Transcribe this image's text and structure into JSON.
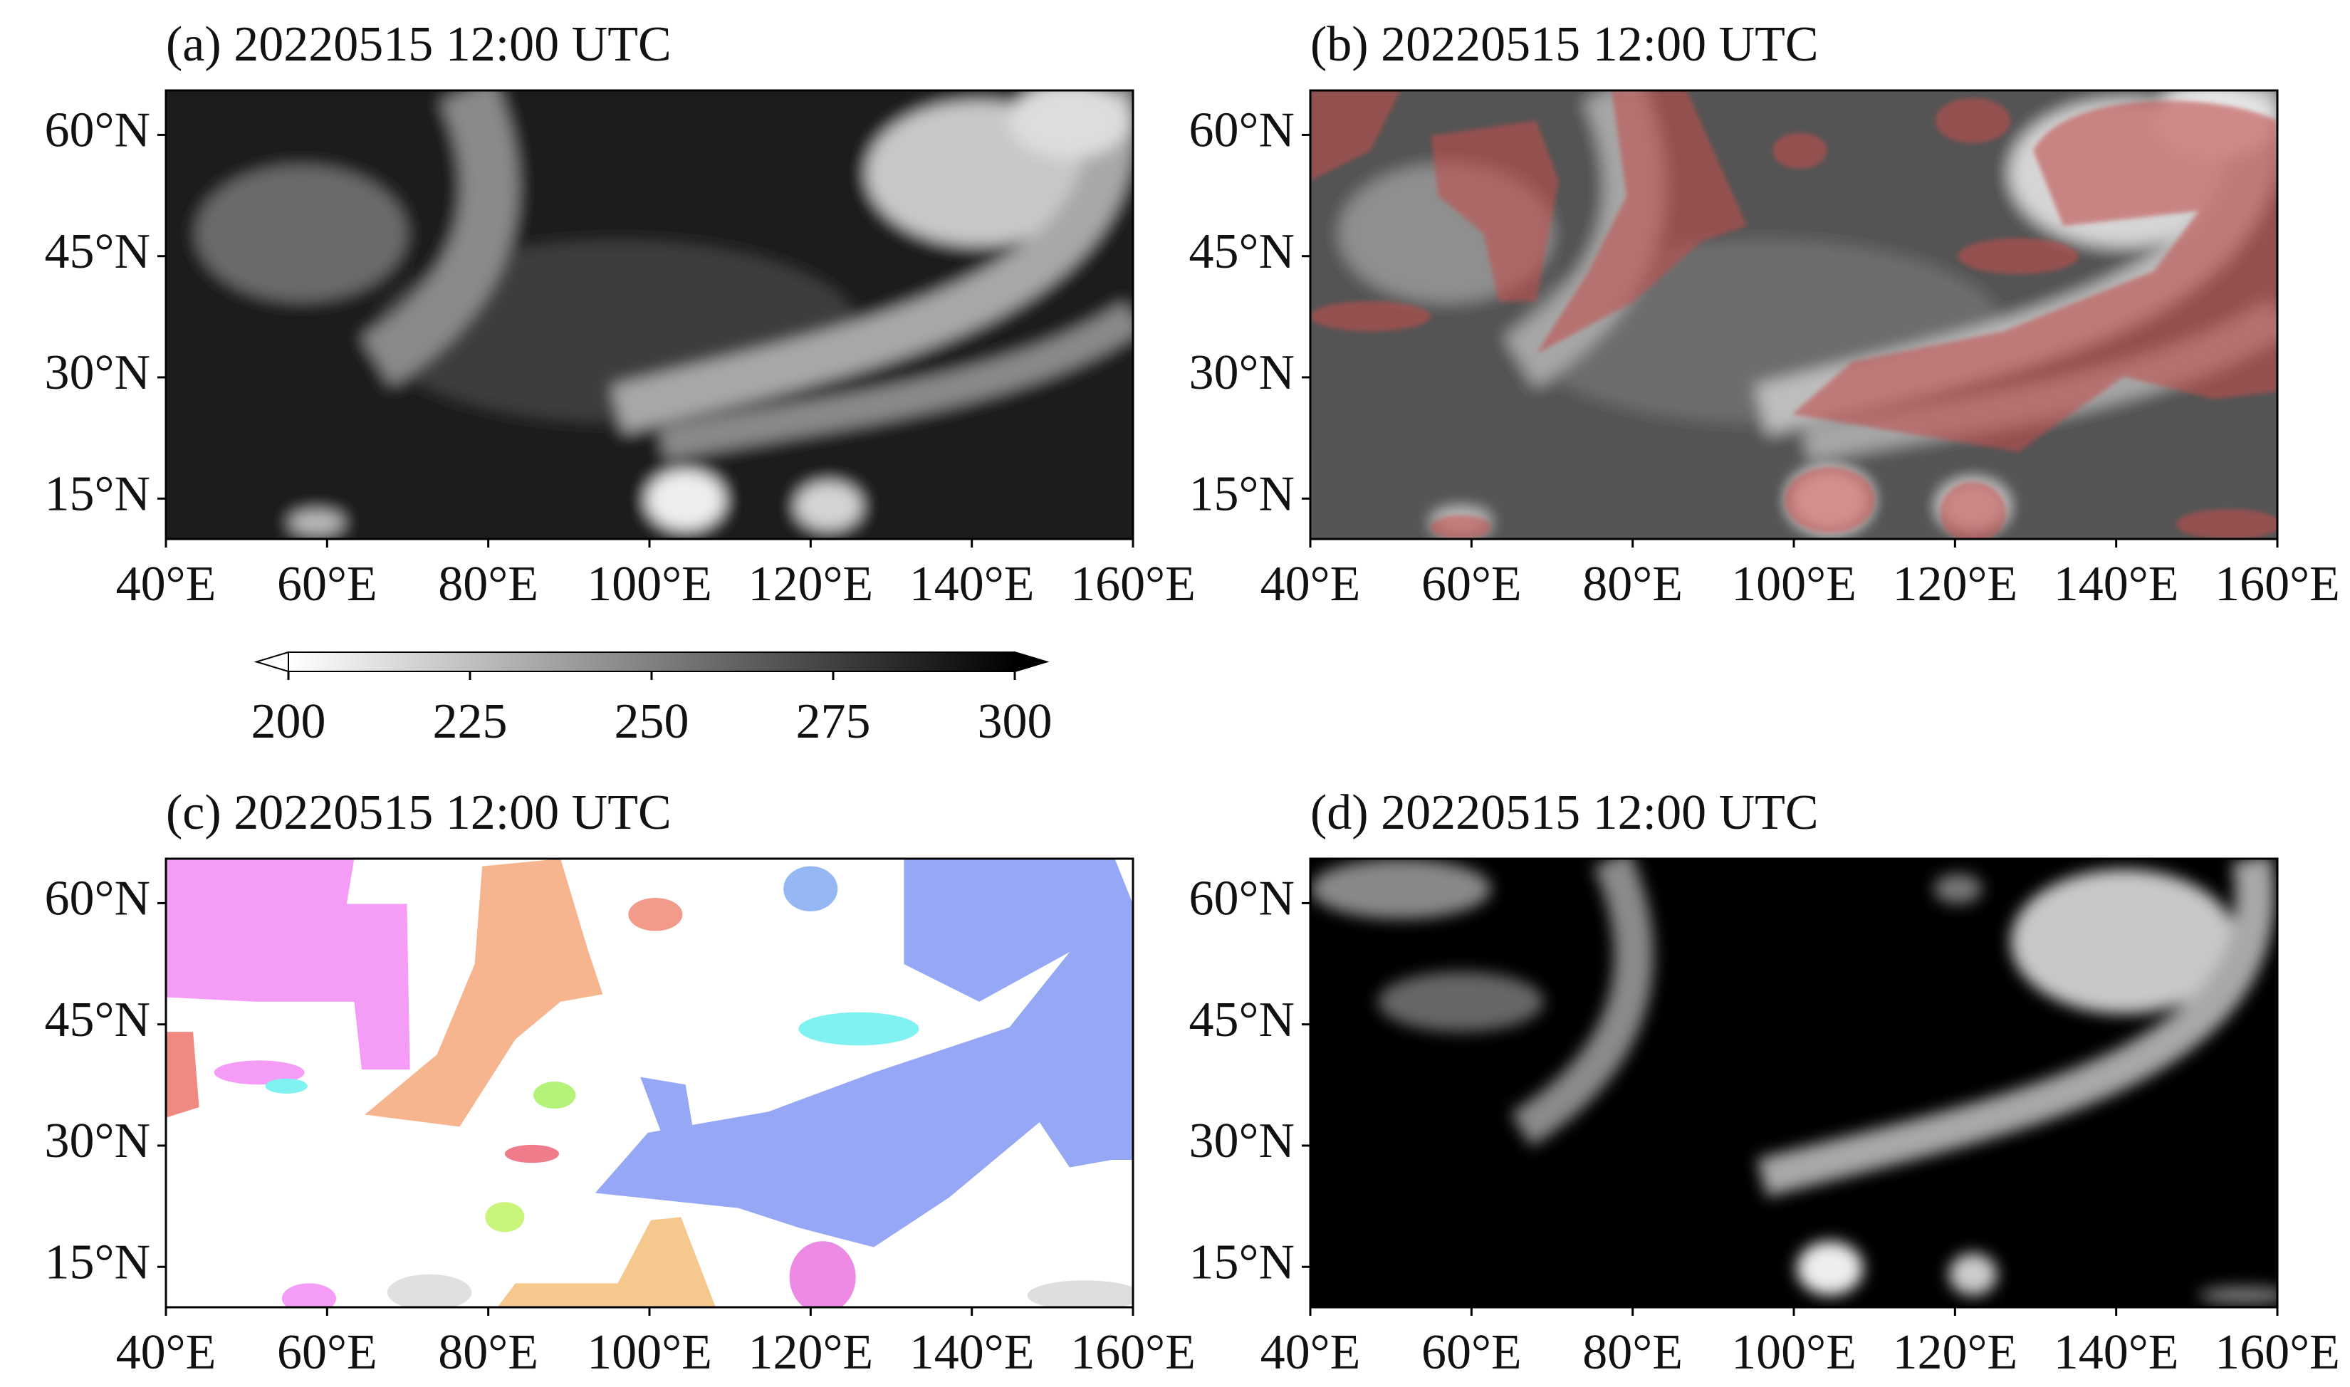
{
  "panels": [
    {
      "title": "(a) 20220515 12:00 UTC",
      "xlim": [
        40,
        160
      ],
      "ylim": [
        10,
        65.5
      ],
      "xticks": [
        {
          "value": 40,
          "label": "40°E"
        },
        {
          "value": 60,
          "label": "60°E"
        },
        {
          "value": 80,
          "label": "80°E"
        },
        {
          "value": 100,
          "label": "100°E"
        },
        {
          "value": 120,
          "label": "120°E"
        },
        {
          "value": 140,
          "label": "140°E"
        },
        {
          "value": 160,
          "label": "160°E"
        }
      ],
      "yticks": [
        {
          "value": 15,
          "label": "15°N"
        },
        {
          "value": 30,
          "label": "30°N"
        },
        {
          "value": 45,
          "label": "45°N"
        },
        {
          "value": 60,
          "label": "60°N"
        }
      ]
    },
    {
      "title": "(b) 20220515 12:00 UTC",
      "xlim": [
        40,
        160
      ],
      "ylim": [
        10,
        65.5
      ],
      "xticks": [
        {
          "value": 40,
          "label": "40°E"
        },
        {
          "value": 60,
          "label": "60°E"
        },
        {
          "value": 80,
          "label": "80°E"
        },
        {
          "value": 100,
          "label": "100°E"
        },
        {
          "value": 120,
          "label": "120°E"
        },
        {
          "value": 140,
          "label": "140°E"
        },
        {
          "value": 160,
          "label": "160°E"
        }
      ],
      "yticks": [
        {
          "value": 15,
          "label": "15°N"
        },
        {
          "value": 30,
          "label": "30°N"
        },
        {
          "value": 45,
          "label": "45°N"
        },
        {
          "value": 60,
          "label": "60°N"
        }
      ]
    },
    {
      "title": "(c) 20220515 12:00 UTC",
      "xlim": [
        40,
        160
      ],
      "ylim": [
        10,
        65.5
      ],
      "xticks": [
        {
          "value": 40,
          "label": "40°E"
        },
        {
          "value": 60,
          "label": "60°E"
        },
        {
          "value": 80,
          "label": "80°E"
        },
        {
          "value": 100,
          "label": "100°E"
        },
        {
          "value": 120,
          "label": "120°E"
        },
        {
          "value": 140,
          "label": "140°E"
        },
        {
          "value": 160,
          "label": "160°E"
        }
      ],
      "yticks": [
        {
          "value": 15,
          "label": "15°N"
        },
        {
          "value": 30,
          "label": "30°N"
        },
        {
          "value": 45,
          "label": "45°N"
        },
        {
          "value": 60,
          "label": "60°N"
        }
      ]
    },
    {
      "title": "(d) 20220515 12:00 UTC",
      "xlim": [
        40,
        160
      ],
      "ylim": [
        10,
        65.5
      ],
      "xticks": [
        {
          "value": 40,
          "label": "40°E"
        },
        {
          "value": 60,
          "label": "60°E"
        },
        {
          "value": 80,
          "label": "80°E"
        },
        {
          "value": 100,
          "label": "100°E"
        },
        {
          "value": 120,
          "label": "120°E"
        },
        {
          "value": 140,
          "label": "140°E"
        },
        {
          "value": 160,
          "label": "160°E"
        }
      ],
      "yticks": [
        {
          "value": 15,
          "label": "15°N"
        },
        {
          "value": 30,
          "label": "30°N"
        },
        {
          "value": 45,
          "label": "45°N"
        },
        {
          "value": 60,
          "label": "60°N"
        }
      ]
    }
  ],
  "colorbar": {
    "lim": [
      200,
      300
    ],
    "ticks": [
      200,
      225,
      250,
      275,
      300
    ]
  }
}
